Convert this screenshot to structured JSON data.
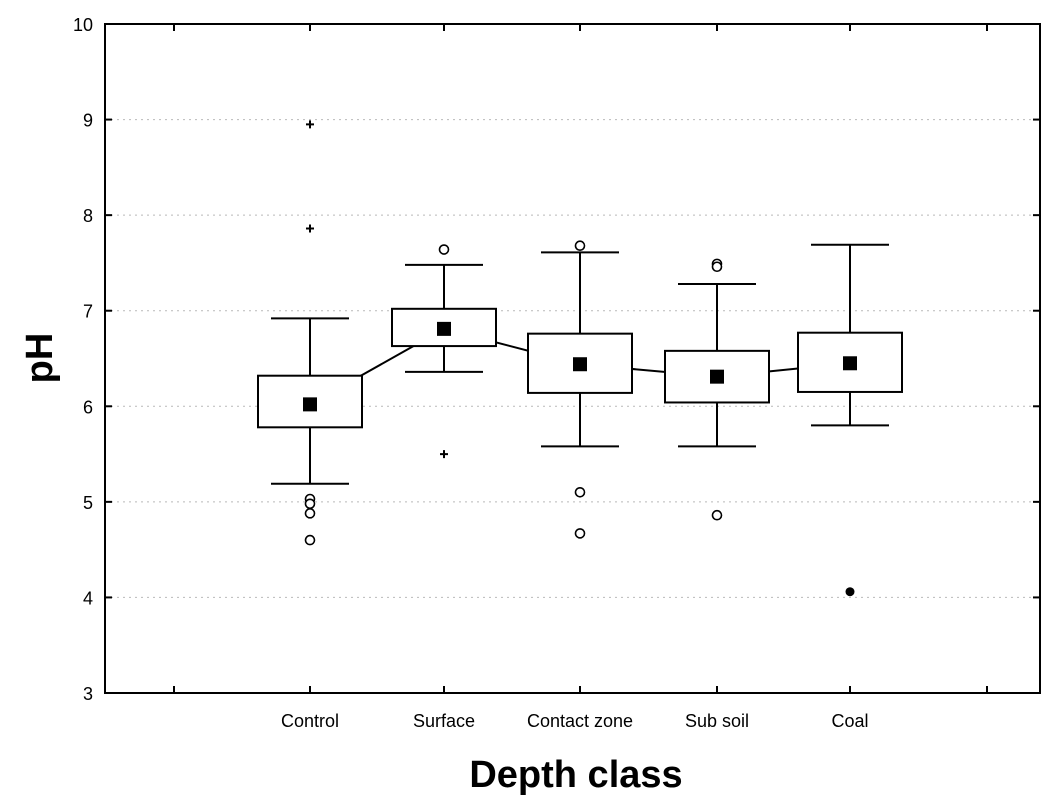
{
  "chart_data": {
    "type": "box",
    "xlabel": "Depth class",
    "ylabel": "pH",
    "ylim": [
      3,
      10
    ],
    "yticks": [
      3,
      4,
      5,
      6,
      7,
      8,
      9,
      10
    ],
    "grid": true,
    "categories": [
      "Control",
      "Surface",
      "Contact zone",
      "Sub soil",
      "Coal"
    ],
    "boxes": [
      {
        "category": "Control",
        "median": 6.02,
        "q1": 5.78,
        "q3": 6.32,
        "whisker_low": 5.19,
        "whisker_high": 6.92,
        "outliers": [
          5.03,
          4.98,
          4.88,
          4.6
        ],
        "extremes": [
          8.95,
          7.86
        ],
        "extreme_markers": [
          "plus",
          "plus"
        ]
      },
      {
        "category": "Surface",
        "median": 6.81,
        "q1": 6.63,
        "q3": 7.02,
        "whisker_low": 6.36,
        "whisker_high": 7.48,
        "outliers": [
          7.64
        ],
        "extremes": [
          5.5
        ],
        "extreme_markers": [
          "plus"
        ]
      },
      {
        "category": "Contact zone",
        "median": 6.44,
        "q1": 6.14,
        "q3": 6.76,
        "whisker_low": 5.58,
        "whisker_high": 7.61,
        "outliers": [
          7.68,
          5.1,
          4.67
        ],
        "extremes": [],
        "extreme_markers": []
      },
      {
        "category": "Sub soil",
        "median": 6.31,
        "q1": 6.04,
        "q3": 6.58,
        "whisker_low": 5.58,
        "whisker_high": 7.28,
        "outliers": [
          7.49,
          7.46,
          4.86
        ],
        "extremes": [],
        "extreme_markers": []
      },
      {
        "category": "Coal",
        "median": 6.45,
        "q1": 6.15,
        "q3": 6.77,
        "whisker_low": 5.8,
        "whisker_high": 7.69,
        "outliers": [],
        "extremes": [
          4.06
        ],
        "extreme_markers": [
          "dot"
        ]
      }
    ]
  }
}
